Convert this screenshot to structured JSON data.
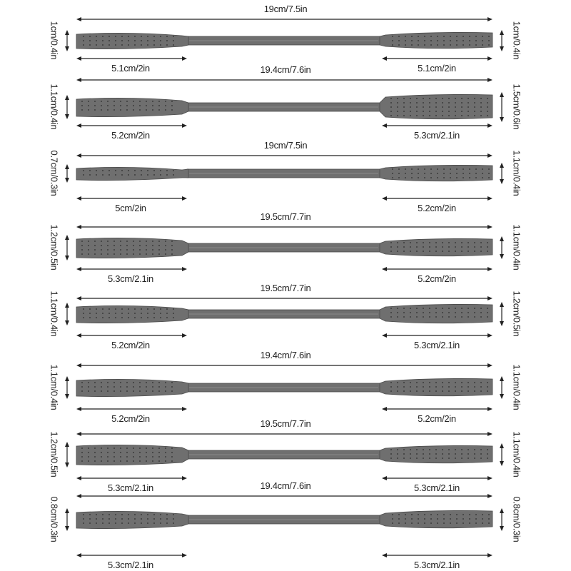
{
  "rows": [
    {
      "total": "19cm/7.5in",
      "left_width": "1cm/0.4in",
      "right_width": "1cm/0.4in",
      "left_length": "5.1cm/2in",
      "right_length": "5.1cm/2in"
    },
    {
      "total": "19.4cm/7.6in",
      "left_width": "1.1cm/0.4in",
      "right_width": "1.5cm/0.6in",
      "left_length": "5.2cm/2in",
      "right_length": "5.3cm/2.1in"
    },
    {
      "total": "19cm/7.5in",
      "left_width": "0.7cm/0.3in",
      "right_width": "1.1cm/0.4in",
      "left_length": "5cm/2in",
      "right_length": "5.2cm/2in"
    },
    {
      "total": "19.5cm/7.7in",
      "left_width": "1.2cm/0.5in",
      "right_width": "1.1cm/0.4in",
      "left_length": "5.3cm/2.1in",
      "right_length": "5.2cm/2in"
    },
    {
      "total": "19.5cm/7.7in",
      "left_width": "1.1cm/0.4in",
      "right_width": "1.2cm/0.5in",
      "left_length": "5.2cm/2in",
      "right_length": "5.3cm/2.1in"
    },
    {
      "total": "19.4cm/7.6in",
      "left_width": "1.1cm/0.4in",
      "right_width": "1.1cm/0.4in",
      "left_length": "5.2cm/2in",
      "right_length": "5.2cm/2in"
    },
    {
      "total": "19.5cm/7.7in",
      "left_width": "1.2cm/0.5in",
      "right_width": "1.1cm/0.4in",
      "left_length": "5.3cm/2.1in",
      "right_length": "5.3cm/2.1in"
    },
    {
      "total": "19.4cm/7.6in",
      "left_width": "0.8cm/0.3in",
      "right_width": "0.8cm/0.3in",
      "left_length": "5.3cm/2.1in",
      "right_length": "5.3cm/2.1in"
    }
  ],
  "colors": {
    "tool": "#6f6f6f",
    "tool_dark": "#4a4a4a",
    "arrow": "#222222"
  }
}
